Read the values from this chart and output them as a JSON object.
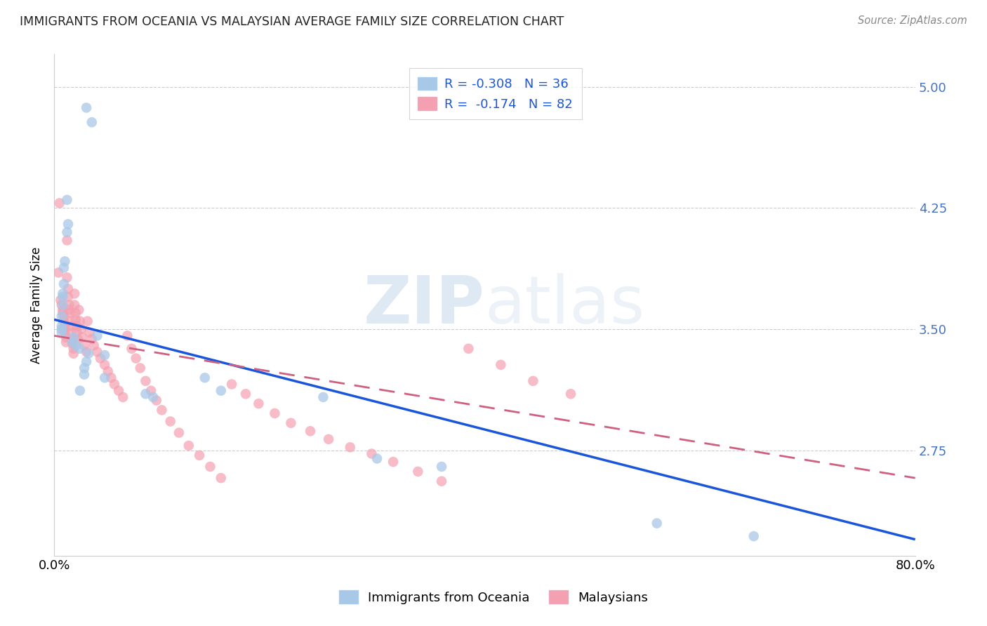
{
  "title": "IMMIGRANTS FROM OCEANIA VS MALAYSIAN AVERAGE FAMILY SIZE CORRELATION CHART",
  "source": "Source: ZipAtlas.com",
  "ylabel": "Average Family Size",
  "yticks": [
    2.75,
    3.5,
    4.25,
    5.0
  ],
  "ytick_labels": [
    "2.75",
    "3.50",
    "4.25",
    "5.00"
  ],
  "right_axis_color": "#4472c4",
  "legend_blue_label": "R = -0.308   N = 36",
  "legend_pink_label": "R =  -0.174   N = 82",
  "blue_color": "#a8c8e8",
  "pink_color": "#f4a0b0",
  "blue_line_color": "#1a56db",
  "pink_line_color": "#d06080",
  "xlim": [
    0.0,
    0.8
  ],
  "ylim": [
    2.1,
    5.2
  ],
  "xtick_positions": [
    0.0,
    0.2,
    0.4,
    0.6,
    0.8
  ],
  "xtick_labels": [
    "0.0%",
    "",
    "",
    "",
    "80.0%"
  ],
  "blue_scatter_x": [
    0.03,
    0.035,
    0.012,
    0.013,
    0.012,
    0.01,
    0.009,
    0.009,
    0.008,
    0.008,
    0.008,
    0.007,
    0.007,
    0.007,
    0.007,
    0.018,
    0.017,
    0.02,
    0.024,
    0.032,
    0.03,
    0.028,
    0.028,
    0.04,
    0.047,
    0.047,
    0.024,
    0.085,
    0.092,
    0.14,
    0.155,
    0.25,
    0.3,
    0.36,
    0.56,
    0.65
  ],
  "blue_scatter_y": [
    4.87,
    4.78,
    4.3,
    4.15,
    4.1,
    3.92,
    3.88,
    3.78,
    3.72,
    3.7,
    3.65,
    3.58,
    3.52,
    3.5,
    3.48,
    3.45,
    3.42,
    3.4,
    3.38,
    3.35,
    3.3,
    3.26,
    3.22,
    3.46,
    3.34,
    3.2,
    3.12,
    3.1,
    3.08,
    3.2,
    3.12,
    3.08,
    2.7,
    2.65,
    2.3,
    2.22
  ],
  "pink_scatter_x": [
    0.004,
    0.005,
    0.006,
    0.007,
    0.008,
    0.008,
    0.009,
    0.009,
    0.01,
    0.01,
    0.01,
    0.011,
    0.011,
    0.012,
    0.012,
    0.013,
    0.013,
    0.014,
    0.014,
    0.015,
    0.015,
    0.016,
    0.016,
    0.017,
    0.017,
    0.018,
    0.018,
    0.019,
    0.019,
    0.02,
    0.02,
    0.021,
    0.021,
    0.022,
    0.023,
    0.024,
    0.025,
    0.026,
    0.028,
    0.03,
    0.031,
    0.033,
    0.035,
    0.037,
    0.04,
    0.043,
    0.047,
    0.05,
    0.053,
    0.056,
    0.06,
    0.064,
    0.068,
    0.072,
    0.076,
    0.08,
    0.085,
    0.09,
    0.095,
    0.1,
    0.108,
    0.116,
    0.125,
    0.135,
    0.145,
    0.155,
    0.165,
    0.178,
    0.19,
    0.205,
    0.22,
    0.238,
    0.255,
    0.275,
    0.295,
    0.315,
    0.338,
    0.36,
    0.385,
    0.415,
    0.445,
    0.48
  ],
  "pink_scatter_y": [
    3.85,
    4.28,
    3.68,
    3.65,
    3.62,
    3.6,
    3.58,
    3.55,
    3.52,
    3.5,
    3.48,
    3.45,
    3.42,
    4.05,
    3.82,
    3.75,
    3.7,
    3.65,
    3.62,
    3.6,
    3.55,
    3.52,
    3.48,
    3.44,
    3.41,
    3.38,
    3.35,
    3.72,
    3.65,
    3.6,
    3.56,
    3.52,
    3.48,
    3.44,
    3.62,
    3.55,
    3.5,
    3.45,
    3.4,
    3.36,
    3.55,
    3.48,
    3.44,
    3.4,
    3.36,
    3.32,
    3.28,
    3.24,
    3.2,
    3.16,
    3.12,
    3.08,
    3.46,
    3.38,
    3.32,
    3.26,
    3.18,
    3.12,
    3.06,
    3.0,
    2.93,
    2.86,
    2.78,
    2.72,
    2.65,
    2.58,
    3.16,
    3.1,
    3.04,
    2.98,
    2.92,
    2.87,
    2.82,
    2.77,
    2.73,
    2.68,
    2.62,
    2.56,
    3.38,
    3.28,
    3.18,
    3.1
  ]
}
